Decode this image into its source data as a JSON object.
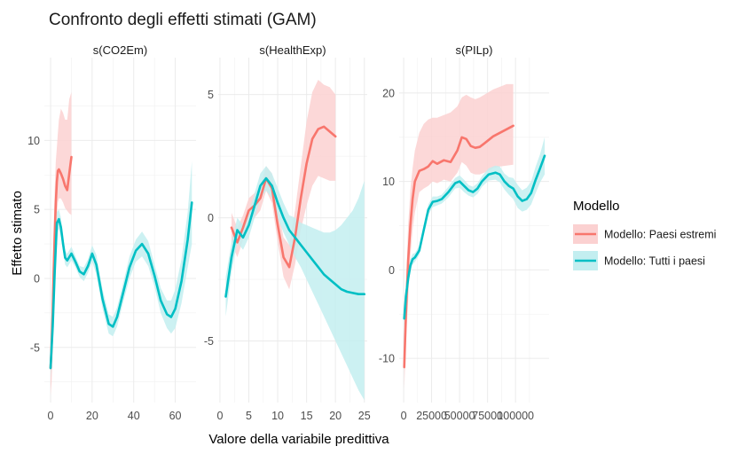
{
  "chart_data": {
    "type": "line",
    "title": "Confronto degli effetti stimati (GAM)",
    "xlabel": "Valore della variabile predittiva",
    "ylabel": "Effetto stimato",
    "legend": {
      "title": "Modello",
      "placement": "right",
      "items": [
        {
          "label": "Modello: Paesi estremi",
          "color": "#F8766D",
          "fill": "#FBD1D1"
        },
        {
          "label": "Modello: Tutti i paesi",
          "color": "#00BFC4",
          "fill": "#C3EEF0"
        }
      ]
    },
    "grid": true,
    "panels": [
      {
        "strip": "s(CO2Em)",
        "xlim": [
          -3,
          70
        ],
        "ylim": [
          -9,
          16
        ],
        "xticks": [
          0,
          20,
          40,
          60
        ],
        "xticklabels": [
          "0",
          "20",
          "40",
          "60"
        ],
        "yticks": [
          -5,
          0,
          5,
          10
        ],
        "yticklabels": [
          "-5",
          "0",
          "5",
          "10"
        ],
        "series": [
          {
            "name": "Modello: Paesi estremi",
            "x": [
              0,
              0.5,
              1,
              1.5,
              2,
              2.5,
              3,
              3.5,
              4,
              5,
              6,
              7,
              8,
              9,
              10
            ],
            "y": [
              -6.5,
              -4.8,
              -2.5,
              0.5,
              3.2,
              5.5,
              7.0,
              7.8,
              7.9,
              7.6,
              7.2,
              6.7,
              6.4,
              7.6,
              8.8
            ],
            "lower": [
              -8.5,
              -7.5,
              -5.5,
              -2.5,
              0,
              2.5,
              4.5,
              5.5,
              5.8,
              5.8,
              5.5,
              5.1,
              4.9,
              4.7,
              4.6
            ],
            "upper": [
              -4.5,
              -2.2,
              0.5,
              3.5,
              6.5,
              8.5,
              9.5,
              10.5,
              11.5,
              12.3,
              12.0,
              11.5,
              11.5,
              13.0,
              13.5
            ]
          },
          {
            "name": "Modello: Tutti i paesi",
            "x": [
              0,
              1,
              2,
              3,
              4,
              5,
              6,
              7,
              8,
              10,
              12,
              14,
              16,
              18,
              20,
              22,
              25,
              28,
              30,
              32,
              35,
              38,
              41,
              44,
              47,
              50,
              53,
              56,
              58,
              60,
              63,
              66,
              68
            ],
            "y": [
              -6.5,
              -3.5,
              0.5,
              4.0,
              4.3,
              3.7,
              2.5,
              1.5,
              1.3,
              1.8,
              1.2,
              0.5,
              0.3,
              0.9,
              1.8,
              1.0,
              -1.5,
              -3.3,
              -3.5,
              -2.8,
              -1.0,
              0.8,
              2.0,
              2.5,
              1.8,
              0.2,
              -1.6,
              -2.6,
              -2.8,
              -2.2,
              -0.2,
              2.8,
              5.5
            ],
            "lower": [
              -7.2,
              -4.5,
              -0.5,
              3.2,
              3.6,
              3.0,
              2.0,
              1.0,
              0.8,
              1.3,
              0.8,
              0.1,
              -0.2,
              0.4,
              1.2,
              0.3,
              -2.2,
              -4.0,
              -4.2,
              -3.5,
              -1.7,
              0.0,
              1.2,
              1.6,
              0.9,
              -0.6,
              -2.5,
              -3.6,
              -4.0,
              -3.6,
              -1.8,
              0.8,
              2.5
            ],
            "upper": [
              -5.8,
              -2.5,
              1.5,
              4.8,
              5.0,
              4.4,
              3.0,
              2.0,
              1.8,
              2.3,
              1.6,
              0.9,
              0.8,
              1.4,
              2.4,
              1.7,
              -0.8,
              -2.6,
              -2.8,
              -2.1,
              -0.3,
              1.6,
              2.8,
              3.4,
              2.7,
              1.0,
              -0.7,
              -1.6,
              -1.6,
              -0.8,
              1.4,
              4.8,
              8.5
            ]
          }
        ]
      },
      {
        "strip": "s(HealthExp)",
        "xlim": [
          -0.3,
          25.5
        ],
        "ylim": [
          -7.5,
          6.5
        ],
        "xticks": [
          0,
          5,
          10,
          15,
          20,
          25
        ],
        "xticklabels": [
          "0",
          "5",
          "10",
          "15",
          "20",
          "25"
        ],
        "yticks": [
          -5,
          0,
          5
        ],
        "yticklabels": [
          "-5",
          "0",
          "5"
        ],
        "series": [
          {
            "name": "Modello: Paesi estremi",
            "x": [
              2,
              3,
              4,
              5,
              6,
              7,
              8,
              9,
              10,
              11,
              12,
              13,
              14,
              15,
              16,
              17,
              18,
              19,
              20
            ],
            "y": [
              -0.4,
              -1.0,
              -0.4,
              0.3,
              0.5,
              0.8,
              1.6,
              1.2,
              -0.3,
              -1.6,
              -2.0,
              -0.8,
              0.8,
              2.2,
              3.2,
              3.6,
              3.7,
              3.5,
              3.3
            ],
            "lower": [
              -1.0,
              -1.6,
              -0.9,
              -0.2,
              0.0,
              0.3,
              1.1,
              0.6,
              -1.0,
              -2.4,
              -2.9,
              -1.9,
              -0.5,
              0.5,
              1.3,
              1.7,
              1.6,
              1.5,
              1.5
            ],
            "upper": [
              0.2,
              -0.4,
              0.1,
              0.8,
              1.0,
              1.3,
              2.1,
              1.8,
              0.4,
              -0.8,
              -1.1,
              0.3,
              2.1,
              3.9,
              5.1,
              5.6,
              5.4,
              5.3,
              5.0
            ]
          },
          {
            "name": "Modello: Tutti i paesi",
            "x": [
              1,
              2,
              3,
              4,
              5,
              6,
              7,
              8,
              9,
              10,
              11,
              12,
              13,
              14,
              15,
              16,
              17,
              18,
              19,
              20,
              21,
              22,
              23,
              24,
              25
            ],
            "y": [
              -3.2,
              -1.6,
              -0.5,
              -0.8,
              -0.3,
              0.5,
              1.3,
              1.6,
              1.3,
              0.6,
              0.0,
              -0.5,
              -0.8,
              -1.1,
              -1.4,
              -1.7,
              -2.0,
              -2.3,
              -2.5,
              -2.7,
              -2.9,
              -3.0,
              -3.05,
              -3.1,
              -3.1
            ],
            "lower": [
              -4.0,
              -2.2,
              -1.0,
              -1.3,
              -0.8,
              0.0,
              0.8,
              1.1,
              0.8,
              0.0,
              -0.6,
              -1.1,
              -1.6,
              -2.0,
              -2.5,
              -3.0,
              -3.5,
              -4.0,
              -4.5,
              -5.0,
              -5.5,
              -6.0,
              -6.5,
              -7.0,
              -7.4
            ],
            "upper": [
              -2.4,
              -1.0,
              0.0,
              -0.3,
              0.2,
              1.0,
              1.8,
              2.1,
              1.8,
              1.2,
              0.6,
              0.1,
              0.0,
              -0.2,
              -0.3,
              -0.4,
              -0.5,
              -0.6,
              -0.6,
              -0.5,
              -0.3,
              0.0,
              0.3,
              0.8,
              1.5
            ]
          }
        ]
      },
      {
        "strip": "s(PILp)",
        "xlim": [
          -4000,
          130000
        ],
        "ylim": [
          -15,
          24
        ],
        "xticks": [
          0,
          25000,
          50000,
          75000,
          100000
        ],
        "xticklabels": [
          "0",
          "25000",
          "50000",
          "75000",
          "100000"
        ],
        "yticks": [
          -10,
          0,
          10,
          20
        ],
        "yticklabels": [
          "-10",
          "0",
          "10",
          "20"
        ],
        "series": [
          {
            "name": "Modello: Paesi estremi",
            "x": [
              500,
              2000,
              4000,
              6000,
              8000,
              10000,
              14000,
              18000,
              22000,
              26000,
              30000,
              36000,
              42000,
              48000,
              52000,
              56000,
              60000,
              64000,
              68000,
              72000,
              76000,
              80000,
              86000,
              92000,
              98000
            ],
            "y": [
              -11,
              -5,
              1,
              5,
              8,
              10,
              11.2,
              11.4,
              11.7,
              12.3,
              12.0,
              12.4,
              12.2,
              13.5,
              15.0,
              14.8,
              14.0,
              13.8,
              13.9,
              14.3,
              14.7,
              15.1,
              15.5,
              15.9,
              16.3
            ],
            "lower": [
              -13.5,
              -8.5,
              -3.5,
              1.5,
              4.5,
              6.5,
              8.8,
              9.2,
              9.5,
              10.0,
              9.8,
              10.2,
              10.0,
              11.0,
              12.2,
              11.8,
              11.0,
              10.8,
              10.8,
              11.0,
              11.2,
              11.5,
              11.7,
              11.8,
              11.9
            ],
            "upper": [
              -9.0,
              -2.0,
              5.0,
              9.0,
              11.5,
              13.5,
              15.5,
              16.5,
              17.0,
              17.2,
              17.2,
              17.5,
              17.8,
              18.5,
              19.5,
              19.8,
              19.5,
              19.3,
              19.5,
              19.8,
              20.1,
              20.4,
              20.7,
              21.0,
              21.0
            ]
          },
          {
            "name": "Modello: Tutti i paesi",
            "x": [
              500,
              2000,
              4000,
              6000,
              8000,
              10000,
              14000,
              18000,
              22000,
              26000,
              30000,
              34000,
              40000,
              46000,
              50000,
              54000,
              58000,
              62000,
              66000,
              70000,
              76000,
              82000,
              86000,
              90000,
              94000,
              98000,
              102000,
              106000,
              110000,
              114000,
              118000,
              122000,
              126000
            ],
            "y": [
              -5.5,
              -3.0,
              -1.0,
              0.5,
              1.2,
              1.4,
              2.2,
              4.5,
              6.8,
              7.7,
              7.8,
              8.0,
              8.8,
              9.8,
              10.0,
              9.5,
              9.0,
              8.8,
              9.2,
              10.0,
              10.8,
              11.0,
              10.8,
              10.0,
              9.5,
              9.2,
              8.3,
              7.8,
              8.0,
              8.7,
              10.2,
              11.5,
              12.9
            ],
            "lower": [
              -6.5,
              -4.0,
              -1.8,
              -0.2,
              0.6,
              0.9,
              1.7,
              4.0,
              6.2,
              7.1,
              7.3,
              7.5,
              8.2,
              9.2,
              9.3,
              8.8,
              8.4,
              8.2,
              8.6,
              9.4,
              10.1,
              10.2,
              9.9,
              9.1,
              8.5,
              8.0,
              7.0,
              6.6,
              6.8,
              7.4,
              8.7,
              9.9,
              10.8
            ],
            "upper": [
              -4.5,
              -2.0,
              -0.2,
              1.2,
              1.8,
              1.9,
              2.7,
              5.0,
              7.4,
              8.3,
              8.3,
              8.5,
              9.4,
              10.4,
              10.7,
              10.2,
              9.6,
              9.4,
              9.8,
              10.6,
              11.5,
              11.8,
              11.7,
              10.9,
              10.5,
              10.4,
              9.6,
              9.0,
              9.3,
              10.0,
              11.7,
              13.1,
              15.0
            ]
          }
        ]
      }
    ]
  }
}
